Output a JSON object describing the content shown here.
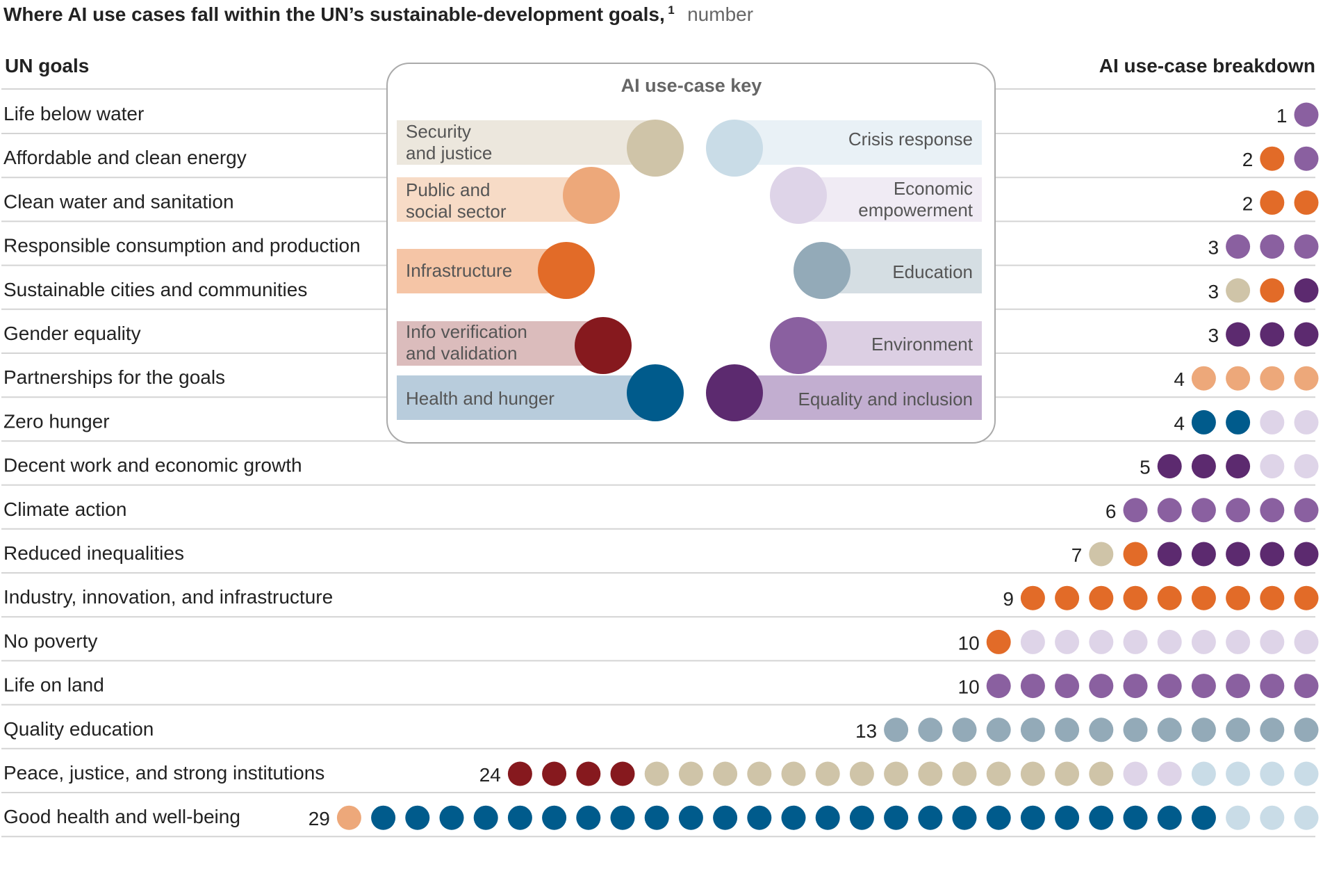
{
  "chart_data": {
    "type": "table",
    "title": "Where AI use cases fall within the UN’s sustainable-development goals,",
    "title_footnote": "1",
    "unit": "number",
    "columns": {
      "goals": "UN goals",
      "breakdown": "AI use-case breakdown"
    },
    "key_title": "AI use-case key",
    "categories": [
      {
        "id": "security",
        "lines": [
          "Security",
          "and justice"
        ],
        "color": "#cfc4a8",
        "band": "#ece7dd"
      },
      {
        "id": "public",
        "lines": [
          "Public and",
          "social sector"
        ],
        "color": "#eda87a",
        "band": "#f7dbc6"
      },
      {
        "id": "infra",
        "lines": [
          "Infrastructure"
        ],
        "color": "#e26b28",
        "band": "#f5c5a6"
      },
      {
        "id": "info",
        "lines": [
          "Info verification",
          "and validation"
        ],
        "color": "#86191e",
        "band": "#dbbcbc"
      },
      {
        "id": "health",
        "lines": [
          "Health and hunger"
        ],
        "color": "#005b8c",
        "band": "#b8ccdc"
      },
      {
        "id": "crisis",
        "lines": [
          "Crisis response"
        ],
        "color": "#c9dce7",
        "band": "#e9f1f6"
      },
      {
        "id": "economic",
        "lines": [
          "Economic",
          "empowerment"
        ],
        "color": "#ded4e8",
        "band": "#f0ebf4"
      },
      {
        "id": "education",
        "lines": [
          "Education"
        ],
        "color": "#93aab8",
        "band": "#d5dee3"
      },
      {
        "id": "environment",
        "lines": [
          "Environment"
        ],
        "color": "#8a60a0",
        "band": "#dccfe3"
      },
      {
        "id": "equality",
        "lines": [
          "Equality and inclusion"
        ],
        "color": "#5c2a6f",
        "band": "#c2aed0"
      }
    ],
    "goals": [
      {
        "name": "Life below water",
        "total": 1,
        "breakdown": {
          "environment": 1
        }
      },
      {
        "name": "Affordable and clean energy",
        "total": 2,
        "breakdown": {
          "infra": 1,
          "environment": 1
        }
      },
      {
        "name": "Clean water and sanitation",
        "total": 2,
        "breakdown": {
          "infra": 2
        }
      },
      {
        "name": "Responsible consumption and production",
        "total": 3,
        "breakdown": {
          "environment": 3
        }
      },
      {
        "name": "Sustainable cities and communities",
        "total": 3,
        "breakdown": {
          "security": 1,
          "infra": 1,
          "equality": 1
        }
      },
      {
        "name": "Gender equality",
        "total": 3,
        "breakdown": {
          "equality": 3
        }
      },
      {
        "name": "Partnerships for the goals",
        "total": 4,
        "breakdown": {
          "public": 4
        }
      },
      {
        "name": "Zero hunger",
        "total": 4,
        "breakdown": {
          "health": 2,
          "economic": 2
        }
      },
      {
        "name": "Decent work and economic growth",
        "total": 5,
        "breakdown": {
          "equality": 3,
          "economic": 2
        }
      },
      {
        "name": "Climate action",
        "total": 6,
        "breakdown": {
          "environment": 6
        }
      },
      {
        "name": "Reduced inequalities",
        "total": 7,
        "breakdown": {
          "security": 1,
          "infra": 1,
          "equality": 5
        }
      },
      {
        "name": "Industry, innovation, and infrastructure",
        "total": 9,
        "breakdown": {
          "infra": 9
        }
      },
      {
        "name": "No poverty",
        "total": 10,
        "breakdown": {
          "infra": 1,
          "economic": 9
        }
      },
      {
        "name": "Life on land",
        "total": 10,
        "breakdown": {
          "environment": 10
        }
      },
      {
        "name": "Quality education",
        "total": 13,
        "breakdown": {
          "education": 13
        }
      },
      {
        "name": "Peace, justice, and strong institutions",
        "total": 24,
        "breakdown": {
          "info": 4,
          "security": 14,
          "economic": 2,
          "crisis": 4
        }
      },
      {
        "name": "Good health and well-being",
        "total": 29,
        "breakdown": {
          "public": 1,
          "health": 25,
          "crisis": 3
        }
      }
    ]
  }
}
